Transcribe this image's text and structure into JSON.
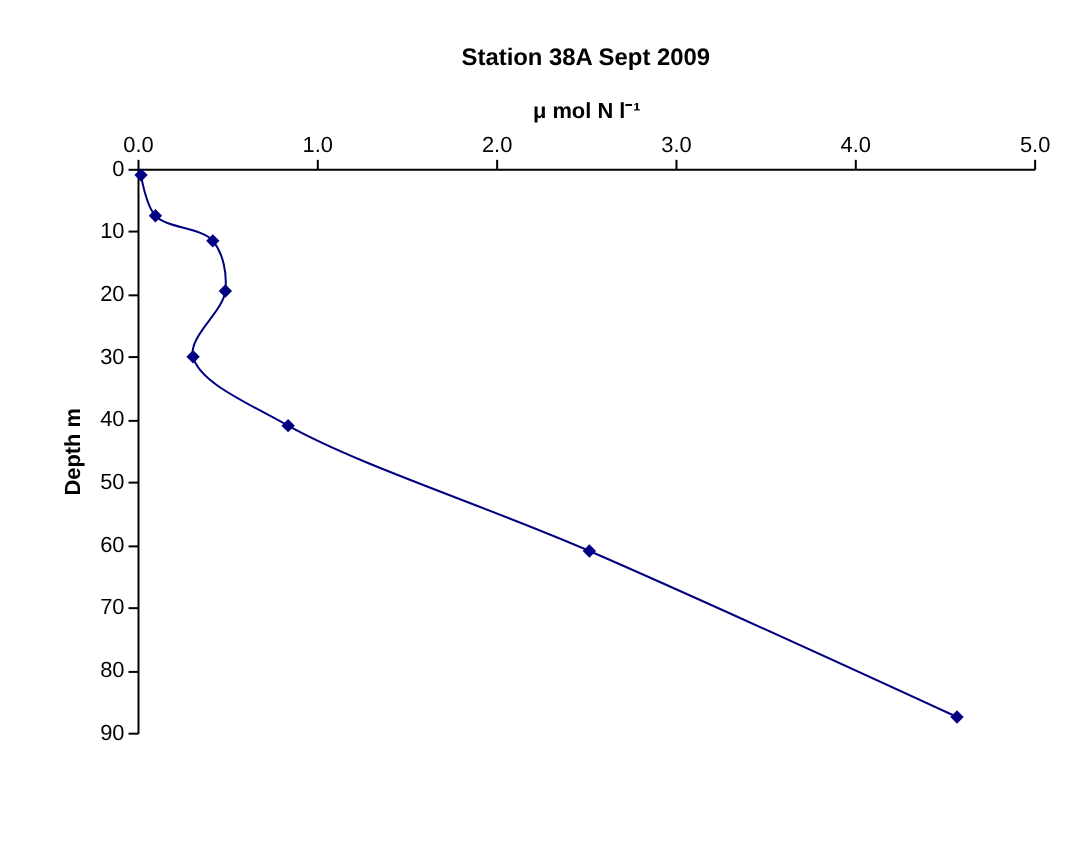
{
  "chart_data": {
    "type": "line",
    "title": "Station 38A Sept 2009",
    "xlabel": "μ mol N l⁻¹",
    "ylabel": "Depth m",
    "x": [
      0.02,
      0.1,
      0.42,
      0.49,
      0.31,
      0.84,
      2.52,
      4.57
    ],
    "series": [
      {
        "color": "#000080",
        "values": [
          1,
          7.5,
          11.5,
          19.5,
          30,
          41,
          61,
          87.5
        ]
      }
    ],
    "xlim": [
      0,
      5
    ],
    "xticks": [
      {
        "value": 0,
        "label": "0.0"
      },
      {
        "value": 1,
        "label": "1.0"
      },
      {
        "value": 2,
        "label": "2.0"
      },
      {
        "value": 3,
        "label": "3.0"
      },
      {
        "value": 4,
        "label": "4.0"
      },
      {
        "value": 5,
        "label": "5.0"
      }
    ],
    "ylim": [
      90,
      0
    ],
    "yticks": [
      0,
      10,
      20,
      30,
      40,
      50,
      60,
      70,
      80,
      90
    ],
    "marker": "diamond",
    "grid": false
  }
}
